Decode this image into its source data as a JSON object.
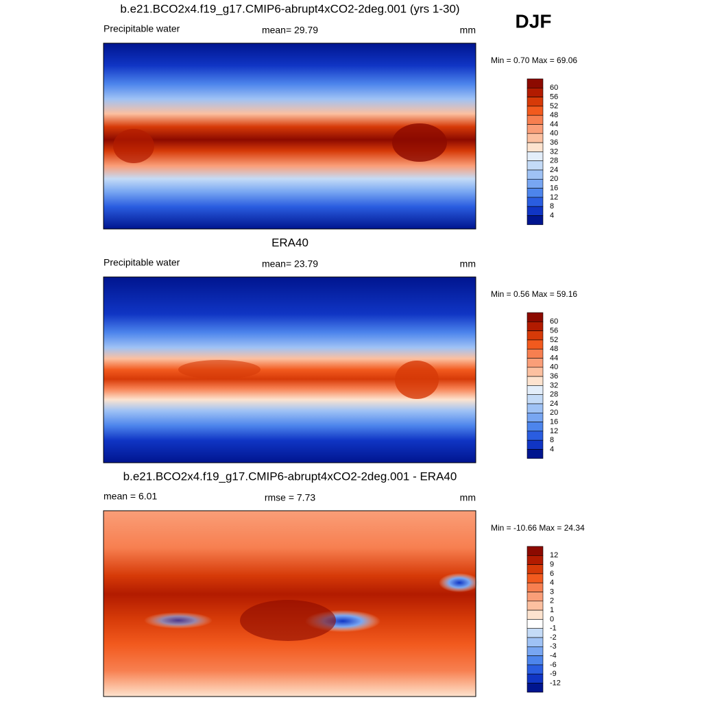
{
  "season": "DJF",
  "panels": [
    {
      "title": "b.e21.BCO2x4.f19_g17.CMIP6-abrupt4xCO2-2deg.001 (yrs 1-30)",
      "left": "Precipitable water",
      "center": "mean=  29.79",
      "right": "mm",
      "stats": "Min =   0.70 Max =  69.06",
      "levels": [
        60,
        56,
        52,
        48,
        44,
        40,
        36,
        32,
        28,
        24,
        20,
        16,
        12,
        8,
        4
      ]
    },
    {
      "title": "ERA40",
      "left": "Precipitable water",
      "center": "mean=  23.79",
      "right": "mm",
      "stats": "Min =   0.56 Max =  59.16",
      "levels": [
        60,
        56,
        52,
        48,
        44,
        40,
        36,
        32,
        28,
        24,
        20,
        16,
        12,
        8,
        4
      ]
    },
    {
      "title": "b.e21.BCO2x4.f19_g17.CMIP6-abrupt4xCO2-2deg.001 - ERA40",
      "left": "mean =   6.01",
      "center": "rmse =   7.73",
      "right": "mm",
      "stats": "Min = -10.66 Max =  24.34",
      "levels": [
        12,
        9,
        6,
        4,
        3,
        2,
        1,
        0,
        -1,
        -2,
        -3,
        -4,
        -6,
        -9,
        -12
      ]
    }
  ]
}
